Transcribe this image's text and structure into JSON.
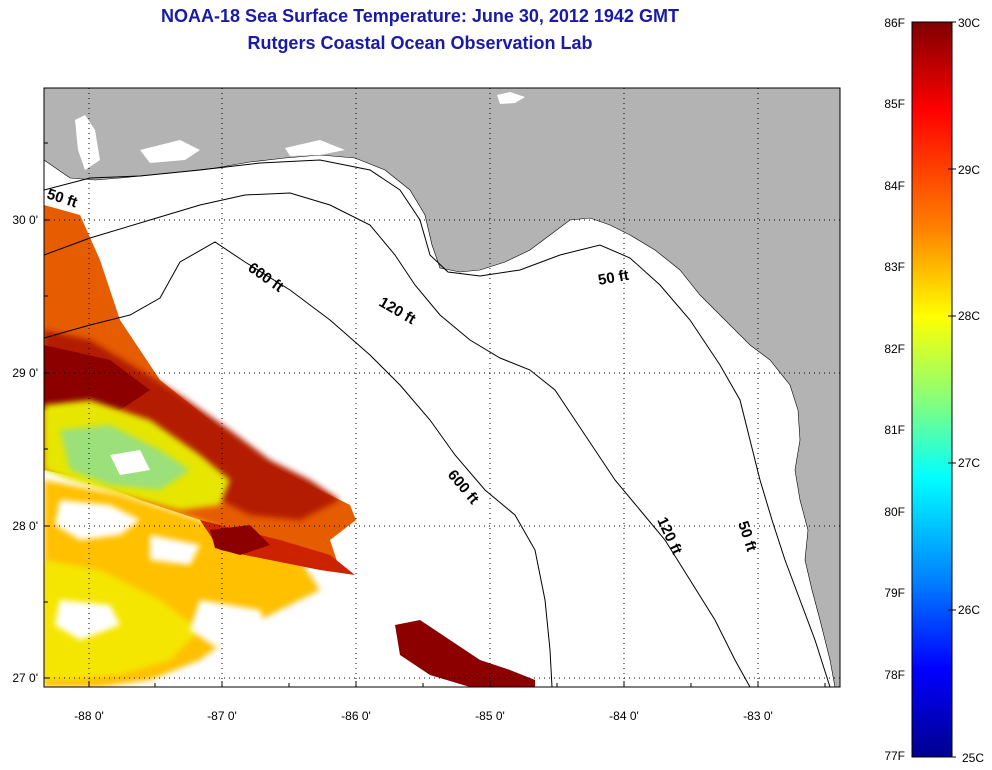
{
  "title": {
    "line1": "NOAA-18 Sea Surface Temperature:  June 30, 2012 1942 GMT",
    "line2": "Rutgers Coastal Ocean Observation Lab"
  },
  "map": {
    "lon_ticks": [
      "-88 0'",
      "-87 0'",
      "-86 0'",
      "-85 0'",
      "-84 0'",
      "-83 0'"
    ],
    "lat_ticks": [
      "30 0'",
      "29 0'",
      "28 0'",
      "27 0'"
    ],
    "land_color": "#b3b3b3",
    "grid": "dotted",
    "contour_labels": [
      {
        "text": "50 ft"
      },
      {
        "text": "600 ft"
      },
      {
        "text": "120 ft"
      },
      {
        "text": "50 ft"
      },
      {
        "text": "600 ft"
      },
      {
        "text": "120 ft"
      },
      {
        "text": "50 ft"
      }
    ]
  },
  "colorbar": {
    "fahrenheit_labels": [
      "86F",
      "85F",
      "84F",
      "83F",
      "82F",
      "81F",
      "80F",
      "79F",
      "78F",
      "77F"
    ],
    "celsius_labels": [
      "30C",
      "29C",
      "28C",
      "27C",
      "26C",
      "25C"
    ],
    "colormap": [
      "#7f0000",
      "#ff0000",
      "#ff8000",
      "#ffff00",
      "#80ff80",
      "#00ffff",
      "#0080ff",
      "#0000ff",
      "#00008f"
    ]
  }
}
